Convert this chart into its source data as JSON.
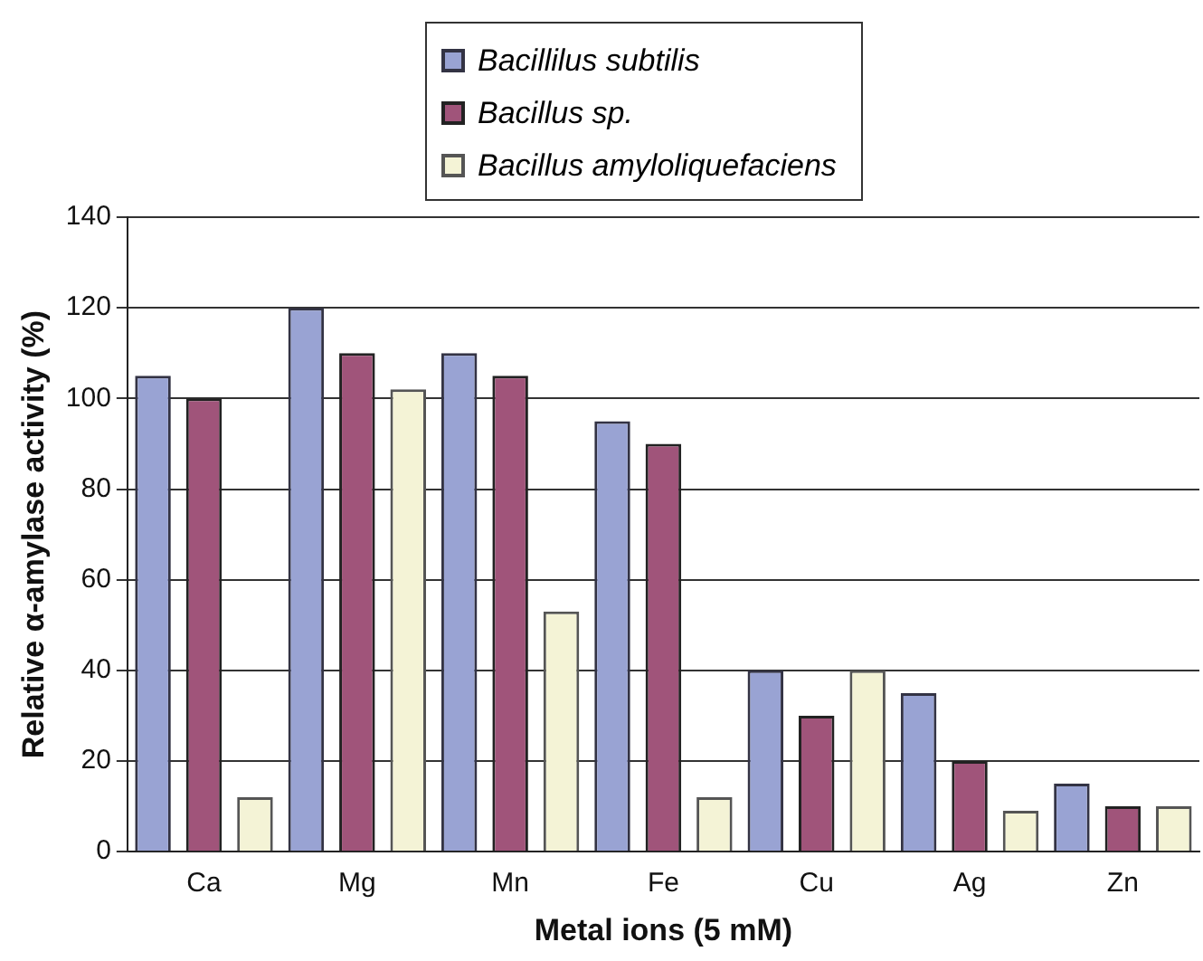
{
  "chart_data": {
    "type": "bar",
    "xlabel": "Metal ions (5 mM)",
    "ylabel": "Relative α-amylase activity (%)",
    "categories": [
      "Ca",
      "Mg",
      "Mn",
      "Fe",
      "Cu",
      "Ag",
      "Zn"
    ],
    "series": [
      {
        "name": "Bacillilus subtilis",
        "color": "#99a3d3",
        "values": [
          105,
          120,
          110,
          95,
          40,
          35,
          15
        ]
      },
      {
        "name": "Bacillus sp.",
        "color": "#a0547a",
        "values": [
          100,
          110,
          105,
          90,
          30,
          20,
          10
        ]
      },
      {
        "name": "Bacillus amyloliquefaciens",
        "color": "#f4f3d6",
        "values": [
          12,
          102,
          53,
          12,
          40,
          9,
          10
        ]
      }
    ],
    "ylim": [
      0,
      140
    ],
    "yticks": [
      0,
      20,
      40,
      60,
      80,
      100,
      120,
      140
    ],
    "grid": "y",
    "legend": "top"
  }
}
